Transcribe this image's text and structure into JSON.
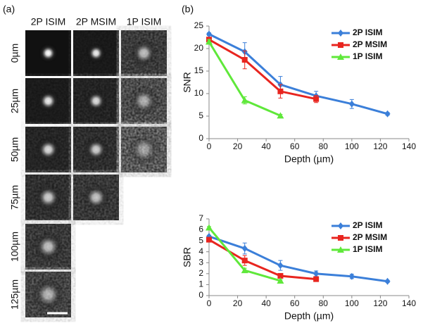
{
  "panel_a": {
    "label": "(a)",
    "columns": [
      "2P ISIM",
      "2P MSIM",
      "1P ISIM"
    ],
    "rows": [
      "0µm",
      "25µm",
      "50µm",
      "75µm",
      "100µm",
      "125µm"
    ]
  },
  "panel_b": {
    "label": "(b)"
  },
  "chart_data": [
    {
      "type": "line",
      "x_label": "Depth (µm)",
      "y_label": "SNR",
      "xlim": [
        0,
        140
      ],
      "xticks": [
        0,
        20,
        40,
        60,
        80,
        100,
        120,
        140
      ],
      "ylim": [
        0,
        25
      ],
      "yticks": [
        0,
        5,
        10,
        15,
        20,
        25
      ],
      "legend": "upper right",
      "series": [
        {
          "name": "2P ISIM",
          "color": "#3b7fd9",
          "marker": "diamond",
          "x": [
            0,
            25,
            50,
            75,
            100,
            125
          ],
          "values": [
            23.2,
            19.3,
            12,
            9.5,
            7.7,
            5.5
          ],
          "errors": [
            0.3,
            2,
            1.8,
            1,
            1,
            0.3
          ]
        },
        {
          "name": "2P MSIM",
          "color": "#e8251f",
          "marker": "square",
          "x": [
            0,
            25,
            50,
            75
          ],
          "values": [
            22,
            17.5,
            10.5,
            8.8
          ],
          "errors": [
            0.5,
            2,
            1.5,
            0.8
          ]
        },
        {
          "name": "1P ISIM",
          "color": "#5fe83a",
          "marker": "triangle",
          "x": [
            0,
            25,
            50
          ],
          "values": [
            21.5,
            8.5,
            5.1
          ],
          "errors": [
            0.5,
            0.8,
            0.3
          ]
        }
      ]
    },
    {
      "type": "line",
      "x_label": "Depth (µm)",
      "y_label": "SBR",
      "xlim": [
        0,
        140
      ],
      "xticks": [
        0,
        20,
        40,
        60,
        80,
        100,
        120,
        140
      ],
      "ylim": [
        0,
        7
      ],
      "yticks": [
        0,
        1,
        2,
        3,
        4,
        5,
        6,
        7
      ],
      "legend": "upper right",
      "series": [
        {
          "name": "2P ISIM",
          "color": "#3b7fd9",
          "marker": "diamond",
          "x": [
            0,
            25,
            50,
            75,
            100,
            125
          ],
          "values": [
            5.4,
            4.3,
            2.75,
            2.0,
            1.75,
            1.3
          ],
          "errors": [
            0.1,
            0.5,
            0.45,
            0.25,
            0.2,
            0.1
          ]
        },
        {
          "name": "2P MSIM",
          "color": "#e8251f",
          "marker": "square",
          "x": [
            0,
            25,
            50,
            75
          ],
          "values": [
            5.1,
            3.2,
            1.8,
            1.5
          ],
          "errors": [
            0.1,
            0.45,
            0.1,
            0.05
          ]
        },
        {
          "name": "1P ISIM",
          "color": "#5fe83a",
          "marker": "triangle",
          "x": [
            0,
            25,
            50
          ],
          "values": [
            6.2,
            2.3,
            1.35
          ],
          "errors": [
            0.1,
            0.2,
            0.1
          ]
        }
      ]
    }
  ]
}
